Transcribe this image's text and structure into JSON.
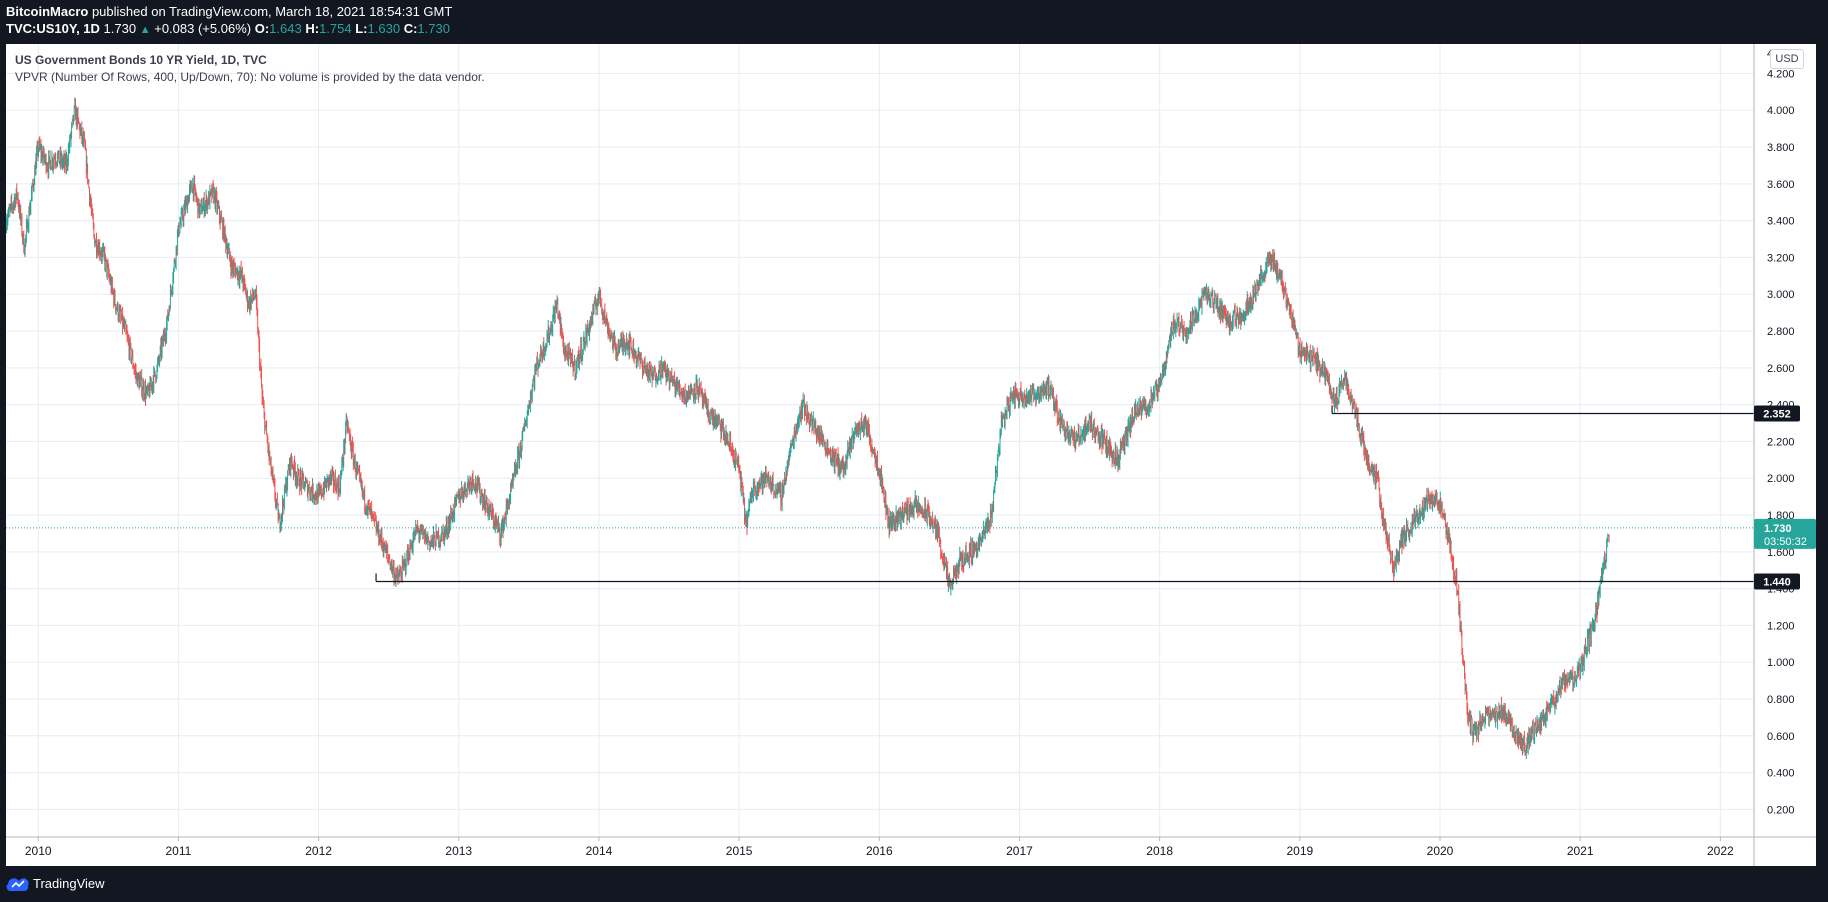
{
  "header": {
    "author": "BitcoinMacro",
    "published_text": " published on TradingView.com, March 18, 2021 18:54:31 GMT",
    "symbol_interval": "TVC:US10Y, 1D",
    "price": "1.730",
    "change_arrow": "▲",
    "change": "+0.083 (+5.06%)",
    "o_label": "O:",
    "o_value": "1.643",
    "h_label": "H:",
    "h_value": "1.754",
    "l_label": "L:",
    "l_value": "1.630",
    "c_label": "C:",
    "c_value": "1.730"
  },
  "legend": {
    "title": "US Government Bonds 10 YR Yield, 1D, TVC",
    "vpvr": "VPVR (Number Of Rows, 400, Up/Down, 70): No volume is provided by the data vendor."
  },
  "currency_button": "USD",
  "footer": {
    "brand": "TradingView"
  },
  "colors": {
    "up": "#26a69a",
    "down": "#ef5350",
    "grid": "#e8ecf3",
    "background": "#131722",
    "plot_background": "#ffffff"
  },
  "chart_data": {
    "type": "candlestick",
    "title": "US Government Bonds 10 YR Yield, 1D, TVC",
    "ylim": [
      0.05,
      4.36
    ],
    "y_ticks": [
      "4.200",
      "4.000",
      "3.800",
      "3.600",
      "3.400",
      "3.200",
      "3.000",
      "2.800",
      "2.600",
      "2.400",
      "2.200",
      "2.000",
      "1.800",
      "1.600",
      "1.400",
      "1.200",
      "1.000",
      "0.800",
      "0.600",
      "0.400",
      "0.200"
    ],
    "x_range": [
      2009.77,
      2022.24
    ],
    "x_ticks": [
      {
        "value": 2010,
        "label": "2010"
      },
      {
        "value": 2011,
        "label": "2011"
      },
      {
        "value": 2012,
        "label": "2012"
      },
      {
        "value": 2013,
        "label": "2013"
      },
      {
        "value": 2014,
        "label": "2014"
      },
      {
        "value": 2015,
        "label": "2015"
      },
      {
        "value": 2016,
        "label": "2016"
      },
      {
        "value": 2017,
        "label": "2017"
      },
      {
        "value": 2018,
        "label": "2018"
      },
      {
        "value": 2019,
        "label": "2019"
      },
      {
        "value": 2020,
        "label": "2020"
      },
      {
        "value": 2021,
        "label": "2021"
      },
      {
        "value": 2022,
        "label": "2022"
      }
    ],
    "top_clipped_tick": "4",
    "series": [
      {
        "name": "US10Y close",
        "points": [
          [
            2009.77,
            3.4
          ],
          [
            2009.85,
            3.55
          ],
          [
            2009.9,
            3.25
          ],
          [
            2010.0,
            3.8
          ],
          [
            2010.07,
            3.7
          ],
          [
            2010.12,
            3.75
          ],
          [
            2010.2,
            3.7
          ],
          [
            2010.26,
            4.0
          ],
          [
            2010.33,
            3.8
          ],
          [
            2010.4,
            3.3
          ],
          [
            2010.47,
            3.2
          ],
          [
            2010.55,
            2.95
          ],
          [
            2010.62,
            2.8
          ],
          [
            2010.7,
            2.55
          ],
          [
            2010.78,
            2.45
          ],
          [
            2010.85,
            2.6
          ],
          [
            2010.92,
            2.85
          ],
          [
            2011.0,
            3.35
          ],
          [
            2011.1,
            3.6
          ],
          [
            2011.15,
            3.45
          ],
          [
            2011.25,
            3.55
          ],
          [
            2011.32,
            3.35
          ],
          [
            2011.38,
            3.15
          ],
          [
            2011.45,
            3.1
          ],
          [
            2011.5,
            2.95
          ],
          [
            2011.55,
            3.0
          ],
          [
            2011.6,
            2.4
          ],
          [
            2011.65,
            2.1
          ],
          [
            2011.72,
            1.75
          ],
          [
            2011.8,
            2.1
          ],
          [
            2011.85,
            2.0
          ],
          [
            2011.92,
            1.95
          ],
          [
            2012.0,
            1.9
          ],
          [
            2012.08,
            2.0
          ],
          [
            2012.15,
            1.95
          ],
          [
            2012.2,
            2.3
          ],
          [
            2012.25,
            2.1
          ],
          [
            2012.32,
            1.9
          ],
          [
            2012.4,
            1.75
          ],
          [
            2012.48,
            1.6
          ],
          [
            2012.56,
            1.45
          ],
          [
            2012.6,
            1.5
          ],
          [
            2012.7,
            1.72
          ],
          [
            2012.8,
            1.65
          ],
          [
            2012.9,
            1.7
          ],
          [
            2013.0,
            1.9
          ],
          [
            2013.1,
            2.0
          ],
          [
            2013.2,
            1.85
          ],
          [
            2013.3,
            1.7
          ],
          [
            2013.38,
            1.95
          ],
          [
            2013.45,
            2.2
          ],
          [
            2013.55,
            2.6
          ],
          [
            2013.65,
            2.8
          ],
          [
            2013.7,
            2.95
          ],
          [
            2013.75,
            2.7
          ],
          [
            2013.83,
            2.6
          ],
          [
            2013.9,
            2.75
          ],
          [
            2014.0,
            3.0
          ],
          [
            2014.05,
            2.85
          ],
          [
            2014.12,
            2.7
          ],
          [
            2014.2,
            2.75
          ],
          [
            2014.28,
            2.65
          ],
          [
            2014.38,
            2.55
          ],
          [
            2014.45,
            2.6
          ],
          [
            2014.55,
            2.5
          ],
          [
            2014.62,
            2.45
          ],
          [
            2014.7,
            2.5
          ],
          [
            2014.78,
            2.35
          ],
          [
            2014.85,
            2.3
          ],
          [
            2014.92,
            2.2
          ],
          [
            2015.0,
            2.05
          ],
          [
            2015.05,
            1.75
          ],
          [
            2015.1,
            1.95
          ],
          [
            2015.2,
            2.0
          ],
          [
            2015.3,
            1.9
          ],
          [
            2015.38,
            2.2
          ],
          [
            2015.45,
            2.4
          ],
          [
            2015.52,
            2.3
          ],
          [
            2015.6,
            2.2
          ],
          [
            2015.68,
            2.1
          ],
          [
            2015.75,
            2.05
          ],
          [
            2015.82,
            2.25
          ],
          [
            2015.9,
            2.3
          ],
          [
            2016.0,
            2.05
          ],
          [
            2016.07,
            1.75
          ],
          [
            2016.15,
            1.8
          ],
          [
            2016.25,
            1.85
          ],
          [
            2016.35,
            1.8
          ],
          [
            2016.42,
            1.7
          ],
          [
            2016.5,
            1.4
          ],
          [
            2016.58,
            1.55
          ],
          [
            2016.65,
            1.6
          ],
          [
            2016.72,
            1.65
          ],
          [
            2016.8,
            1.8
          ],
          [
            2016.87,
            2.3
          ],
          [
            2016.95,
            2.45
          ],
          [
            2017.0,
            2.45
          ],
          [
            2017.1,
            2.45
          ],
          [
            2017.2,
            2.5
          ],
          [
            2017.3,
            2.3
          ],
          [
            2017.4,
            2.2
          ],
          [
            2017.5,
            2.3
          ],
          [
            2017.6,
            2.2
          ],
          [
            2017.7,
            2.1
          ],
          [
            2017.75,
            2.2
          ],
          [
            2017.82,
            2.35
          ],
          [
            2017.92,
            2.4
          ],
          [
            2018.0,
            2.5
          ],
          [
            2018.1,
            2.85
          ],
          [
            2018.2,
            2.8
          ],
          [
            2018.32,
            3.0
          ],
          [
            2018.4,
            2.95
          ],
          [
            2018.5,
            2.85
          ],
          [
            2018.6,
            2.9
          ],
          [
            2018.7,
            3.05
          ],
          [
            2018.8,
            3.2
          ],
          [
            2018.88,
            3.05
          ],
          [
            2018.95,
            2.85
          ],
          [
            2019.0,
            2.7
          ],
          [
            2019.1,
            2.65
          ],
          [
            2019.2,
            2.55
          ],
          [
            2019.25,
            2.4
          ],
          [
            2019.32,
            2.55
          ],
          [
            2019.4,
            2.35
          ],
          [
            2019.48,
            2.1
          ],
          [
            2019.55,
            2.0
          ],
          [
            2019.6,
            1.75
          ],
          [
            2019.67,
            1.5
          ],
          [
            2019.72,
            1.65
          ],
          [
            2019.8,
            1.75
          ],
          [
            2019.88,
            1.85
          ],
          [
            2019.95,
            1.9
          ],
          [
            2020.0,
            1.85
          ],
          [
            2020.08,
            1.6
          ],
          [
            2020.13,
            1.35
          ],
          [
            2020.17,
            0.95
          ],
          [
            2020.2,
            0.7
          ],
          [
            2020.25,
            0.6
          ],
          [
            2020.3,
            0.7
          ],
          [
            2020.4,
            0.7
          ],
          [
            2020.45,
            0.75
          ],
          [
            2020.55,
            0.6
          ],
          [
            2020.6,
            0.55
          ],
          [
            2020.7,
            0.65
          ],
          [
            2020.78,
            0.75
          ],
          [
            2020.85,
            0.85
          ],
          [
            2020.9,
            0.9
          ],
          [
            2020.97,
            0.92
          ],
          [
            2021.0,
            0.95
          ],
          [
            2021.05,
            1.1
          ],
          [
            2021.1,
            1.2
          ],
          [
            2021.15,
            1.45
          ],
          [
            2021.18,
            1.55
          ],
          [
            2021.21,
            1.73
          ]
        ]
      }
    ],
    "horizontal_lines": [
      {
        "price": 2.352,
        "label": "2.352",
        "x_start": 2019.23
      },
      {
        "price": 1.44,
        "label": "1.440",
        "x_start": 2012.41
      }
    ],
    "last_price": {
      "value": 1.73,
      "label": "1.730",
      "countdown": "03:50:32"
    }
  }
}
